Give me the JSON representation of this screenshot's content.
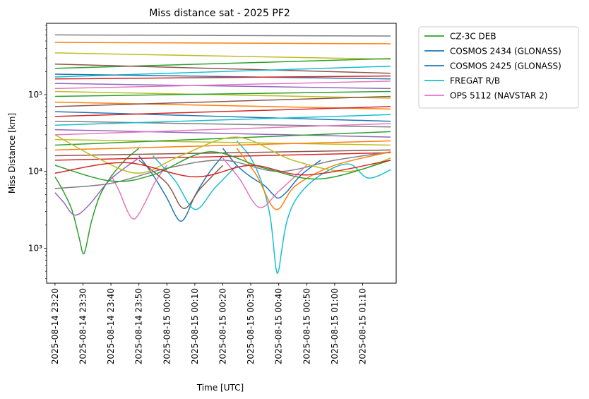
{
  "chart_data": {
    "type": "line",
    "title": "Miss distance sat - 2025 PF2",
    "xlabel": "Time [UTC]",
    "ylabel": "Miss Distance [km]",
    "yscale": "log",
    "ylim": [
      350,
      850000
    ],
    "xlim": [
      "2025-08-14 23:17",
      "2025-08-15 01:22"
    ],
    "x_ticks": [
      "2025-08-14 23:20",
      "2025-08-14 23:30",
      "2025-08-14 23:40",
      "2025-08-14 23:50",
      "2025-08-15 00:00",
      "2025-08-15 00:10",
      "2025-08-15 00:20",
      "2025-08-15 00:30",
      "2025-08-15 00:40",
      "2025-08-15 00:50",
      "2025-08-15 01:00",
      "2025-08-15 01:10"
    ],
    "y_ticks": [
      {
        "value": 1000,
        "label": "10³"
      },
      {
        "value": 10000,
        "label": "10⁴"
      },
      {
        "value": 100000,
        "label": "10⁵"
      }
    ],
    "legend_position": "outside-right",
    "grid": false,
    "legend": [
      {
        "name": "CZ-3C DEB",
        "color": "#2ca02c"
      },
      {
        "name": "COSMOS 2434 (GLONASS)",
        "color": "#1f77b4"
      },
      {
        "name": "COSMOS 2425 (GLONASS)",
        "color": "#1f77b4"
      },
      {
        "name": "FREGAT R/B",
        "color": "#17becf"
      },
      {
        "name": "OPS 5112 (NAVSTAR 2)",
        "color": "#e377c2"
      }
    ],
    "series": [
      {
        "name": "CZ-3C DEB",
        "color": "#2ca02c",
        "x": [
          "2025-08-14 23:20",
          "2025-08-14 23:23",
          "2025-08-14 23:26",
          "2025-08-14 23:28",
          "2025-08-14 23:29",
          "2025-08-14 23:30",
          "2025-08-14 23:31",
          "2025-08-14 23:33",
          "2025-08-14 23:36",
          "2025-08-14 23:40",
          "2025-08-14 23:45",
          "2025-08-14 23:50"
        ],
        "y": [
          8500,
          5500,
          3200,
          1700,
          1200,
          850,
          1000,
          2200,
          4800,
          8500,
          14000,
          20000
        ]
      },
      {
        "name": "COSMOS 2434 (GLONASS)",
        "color": "#1f77b4",
        "x": [
          "2025-08-14 23:50",
          "2025-08-14 23:55",
          "2025-08-15 00:00",
          "2025-08-15 00:03",
          "2025-08-15 00:05",
          "2025-08-15 00:07",
          "2025-08-15 00:10",
          "2025-08-15 00:15",
          "2025-08-15 00:20"
        ],
        "y": [
          16000,
          9000,
          4500,
          2700,
          2250,
          2700,
          4800,
          9500,
          16000
        ]
      },
      {
        "name": "COSMOS 2425 (GLONASS)",
        "color": "#1f77b4",
        "x": [
          "2025-08-15 00:20",
          "2025-08-15 00:25",
          "2025-08-15 00:30",
          "2025-08-15 00:35",
          "2025-08-15 00:38",
          "2025-08-15 00:40",
          "2025-08-15 00:43",
          "2025-08-15 00:48",
          "2025-08-15 00:55"
        ],
        "y": [
          20000,
          12000,
          8500,
          6500,
          5000,
          4500,
          5500,
          9000,
          14000
        ]
      },
      {
        "name": "FREGAT R/B",
        "color": "#17becf",
        "x": [
          "2025-08-15 00:25",
          "2025-08-15 00:30",
          "2025-08-15 00:34",
          "2025-08-15 00:37",
          "2025-08-15 00:39",
          "2025-08-15 00:40",
          "2025-08-15 00:41",
          "2025-08-15 00:43",
          "2025-08-15 00:47",
          "2025-08-15 00:55",
          "2025-08-15 01:05",
          "2025-08-15 01:12",
          "2025-08-15 01:20"
        ],
        "y": [
          25000,
          15000,
          7000,
          2500,
          550,
          520,
          900,
          2300,
          4800,
          9000,
          12500,
          8200,
          10500
        ]
      },
      {
        "name": "OPS 5112 (NAVSTAR 2)",
        "color": "#e377c2",
        "x": [
          "2025-08-14 23:40",
          "2025-08-14 23:43",
          "2025-08-14 23:46",
          "2025-08-14 23:48",
          "2025-08-14 23:50",
          "2025-08-14 23:53",
          "2025-08-14 23:56",
          "2025-08-15 00:00"
        ],
        "y": [
          9000,
          5500,
          3000,
          2400,
          2800,
          4500,
          7500,
          12000
        ]
      },
      {
        "name": "",
        "color": "#7f7f7f",
        "x": [
          "2025-08-14 23:20",
          "2025-08-15 01:20"
        ],
        "y": [
          600000,
          580000
        ]
      },
      {
        "name": "",
        "color": "#ff7f0e",
        "x": [
          "2025-08-14 23:20",
          "2025-08-15 01:20"
        ],
        "y": [
          480000,
          460000
        ]
      },
      {
        "name": "",
        "color": "#bcbd22",
        "x": [
          "2025-08-14 23:20",
          "2025-08-15 01:20"
        ],
        "y": [
          350000,
          290000
        ]
      },
      {
        "name": "",
        "color": "#2ca02c",
        "x": [
          "2025-08-14 23:20",
          "2025-08-15 01:20"
        ],
        "y": [
          220000,
          295000
        ]
      },
      {
        "name": "",
        "color": "#8c564b",
        "x": [
          "2025-08-14 23:20",
          "2025-08-15 01:20"
        ],
        "y": [
          250000,
          190000
        ]
      },
      {
        "name": "",
        "color": "#17becf",
        "x": [
          "2025-08-14 23:20",
          "2025-08-15 01:20"
        ],
        "y": [
          170000,
          235000
        ]
      },
      {
        "name": "",
        "color": "#1f77b4",
        "x": [
          "2025-08-14 23:20",
          "2025-08-15 01:20"
        ],
        "y": [
          185000,
          160000
        ]
      },
      {
        "name": "",
        "color": "#d62728",
        "x": [
          "2025-08-14 23:20",
          "2025-08-15 01:20"
        ],
        "y": [
          160000,
          175000
        ]
      },
      {
        "name": "",
        "color": "#9467bd",
        "x": [
          "2025-08-14 23:20",
          "2025-08-15 01:20"
        ],
        "y": [
          140000,
          120000
        ]
      },
      {
        "name": "",
        "color": "#e377c2",
        "x": [
          "2025-08-14 23:20",
          "2025-08-15 01:20"
        ],
        "y": [
          120000,
          150000
        ]
      },
      {
        "name": "",
        "color": "#bcbd22",
        "x": [
          "2025-08-14 23:20",
          "2025-08-15 01:20"
        ],
        "y": [
          110000,
          90000
        ]
      },
      {
        "name": "",
        "color": "#2ca02c",
        "x": [
          "2025-08-14 23:20",
          "2025-08-15 01:20"
        ],
        "y": [
          95000,
          110000
        ]
      },
      {
        "name": "",
        "color": "#ff7f0e",
        "x": [
          "2025-08-14 23:20",
          "2025-08-15 01:20"
        ],
        "y": [
          80000,
          65000
        ]
      },
      {
        "name": "",
        "color": "#8c564b",
        "x": [
          "2025-08-14 23:20",
          "2025-08-15 01:20"
        ],
        "y": [
          70000,
          95000
        ]
      },
      {
        "name": "",
        "color": "#1f77b4",
        "x": [
          "2025-08-14 23:20",
          "2025-08-15 01:20"
        ],
        "y": [
          60000,
          45000
        ]
      },
      {
        "name": "",
        "color": "#d62728",
        "x": [
          "2025-08-14 23:20",
          "2025-08-15 01:20"
        ],
        "y": [
          52000,
          70000
        ]
      },
      {
        "name": "",
        "color": "#7f7f7f",
        "x": [
          "2025-08-14 23:20",
          "2025-08-15 01:20"
        ],
        "y": [
          45000,
          38000
        ]
      },
      {
        "name": "",
        "color": "#17becf",
        "x": [
          "2025-08-14 23:20",
          "2025-08-15 01:20"
        ],
        "y": [
          40000,
          55000
        ]
      },
      {
        "name": "",
        "color": "#9467bd",
        "x": [
          "2025-08-14 23:20",
          "2025-08-15 01:20"
        ],
        "y": [
          35000,
          28000
        ]
      },
      {
        "name": "",
        "color": "#e377c2",
        "x": [
          "2025-08-14 23:20",
          "2025-08-15 01:20"
        ],
        "y": [
          30000,
          42000
        ]
      },
      {
        "name": "",
        "color": "#bcbd22",
        "x": [
          "2025-08-14 23:20",
          "2025-08-15 01:20"
        ],
        "y": [
          26000,
          22000
        ]
      },
      {
        "name": "",
        "color": "#2ca02c",
        "x": [
          "2025-08-14 23:20",
          "2025-08-15 01:20"
        ],
        "y": [
          22000,
          33000
        ]
      },
      {
        "name": "",
        "color": "#ff7f0e",
        "x": [
          "2025-08-14 23:20",
          "2025-08-15 01:20"
        ],
        "y": [
          19000,
          25000
        ]
      },
      {
        "name": "",
        "color": "#8c564b",
        "x": [
          "2025-08-14 23:20",
          "2025-08-15 01:20"
        ],
        "y": [
          16000,
          19000
        ]
      },
      {
        "name": "",
        "color": "#d62728",
        "x": [
          "2025-08-14 23:20",
          "2025-08-15 01:20"
        ],
        "y": [
          14000,
          17500
        ]
      },
      {
        "name": "",
        "color": "#7f7f7f",
        "x": [
          "2025-08-14 23:20",
          "2025-08-14 23:40",
          "2025-08-15 00:00",
          "2025-08-15 00:20",
          "2025-08-15 00:40",
          "2025-08-15 01:00",
          "2025-08-15 01:20"
        ],
        "y": [
          6000,
          7000,
          11000,
          14000,
          10000,
          14000,
          18000
        ]
      },
      {
        "name": "",
        "color": "#9467bd",
        "x": [
          "2025-08-14 23:20",
          "2025-08-14 23:23",
          "2025-08-14 23:27",
          "2025-08-14 23:32",
          "2025-08-14 23:40",
          "2025-08-14 23:50"
        ],
        "y": [
          5300,
          4000,
          2700,
          3600,
          8000,
          15000
        ]
      },
      {
        "name": "",
        "color": "#8c564b",
        "x": [
          "2025-08-14 23:50",
          "2025-08-15 00:00",
          "2025-08-15 00:06",
          "2025-08-15 00:12",
          "2025-08-15 00:20"
        ],
        "y": [
          14000,
          7000,
          3300,
          6000,
          12000
        ]
      },
      {
        "name": "",
        "color": "#e377c2",
        "x": [
          "2025-08-15 00:20",
          "2025-08-15 00:26",
          "2025-08-15 00:33",
          "2025-08-15 00:40",
          "2025-08-15 00:50"
        ],
        "y": [
          15000,
          8000,
          3400,
          5500,
          12000
        ]
      },
      {
        "name": "",
        "color": "#ff7f0e",
        "x": [
          "2025-08-15 00:25",
          "2025-08-15 00:32",
          "2025-08-15 00:39",
          "2025-08-15 00:46",
          "2025-08-15 01:00",
          "2025-08-15 01:20"
        ],
        "y": [
          20000,
          9000,
          3200,
          6500,
          12000,
          18000
        ]
      },
      {
        "name": "",
        "color": "#17becf",
        "x": [
          "2025-08-14 23:55",
          "2025-08-15 00:03",
          "2025-08-15 00:10",
          "2025-08-15 00:17",
          "2025-08-15 00:25"
        ],
        "y": [
          16000,
          7500,
          3200,
          6000,
          12000
        ]
      },
      {
        "name": "",
        "color": "#bcbd22",
        "x": [
          "2025-08-14 23:20",
          "2025-08-14 23:35",
          "2025-08-14 23:50",
          "2025-08-15 00:05",
          "2025-08-15 00:25",
          "2025-08-15 00:45",
          "2025-08-15 01:05",
          "2025-08-15 01:20"
        ],
        "y": [
          30000,
          15000,
          9500,
          16000,
          28000,
          14000,
          10000,
          15000
        ]
      },
      {
        "name": "",
        "color": "#2ca02c",
        "x": [
          "2025-08-14 23:20",
          "2025-08-14 23:40",
          "2025-08-14 23:55",
          "2025-08-15 00:15",
          "2025-08-15 00:35",
          "2025-08-15 00:55",
          "2025-08-15 01:20"
        ],
        "y": [
          12000,
          7500,
          9000,
          18000,
          11000,
          8000,
          14000
        ]
      },
      {
        "name": "",
        "color": "#d62728",
        "x": [
          "2025-08-14 23:20",
          "2025-08-14 23:45",
          "2025-08-15 00:10",
          "2025-08-15 00:30",
          "2025-08-15 00:50",
          "2025-08-15 01:20"
        ],
        "y": [
          9500,
          13000,
          8500,
          12000,
          9000,
          14000
        ]
      }
    ]
  }
}
